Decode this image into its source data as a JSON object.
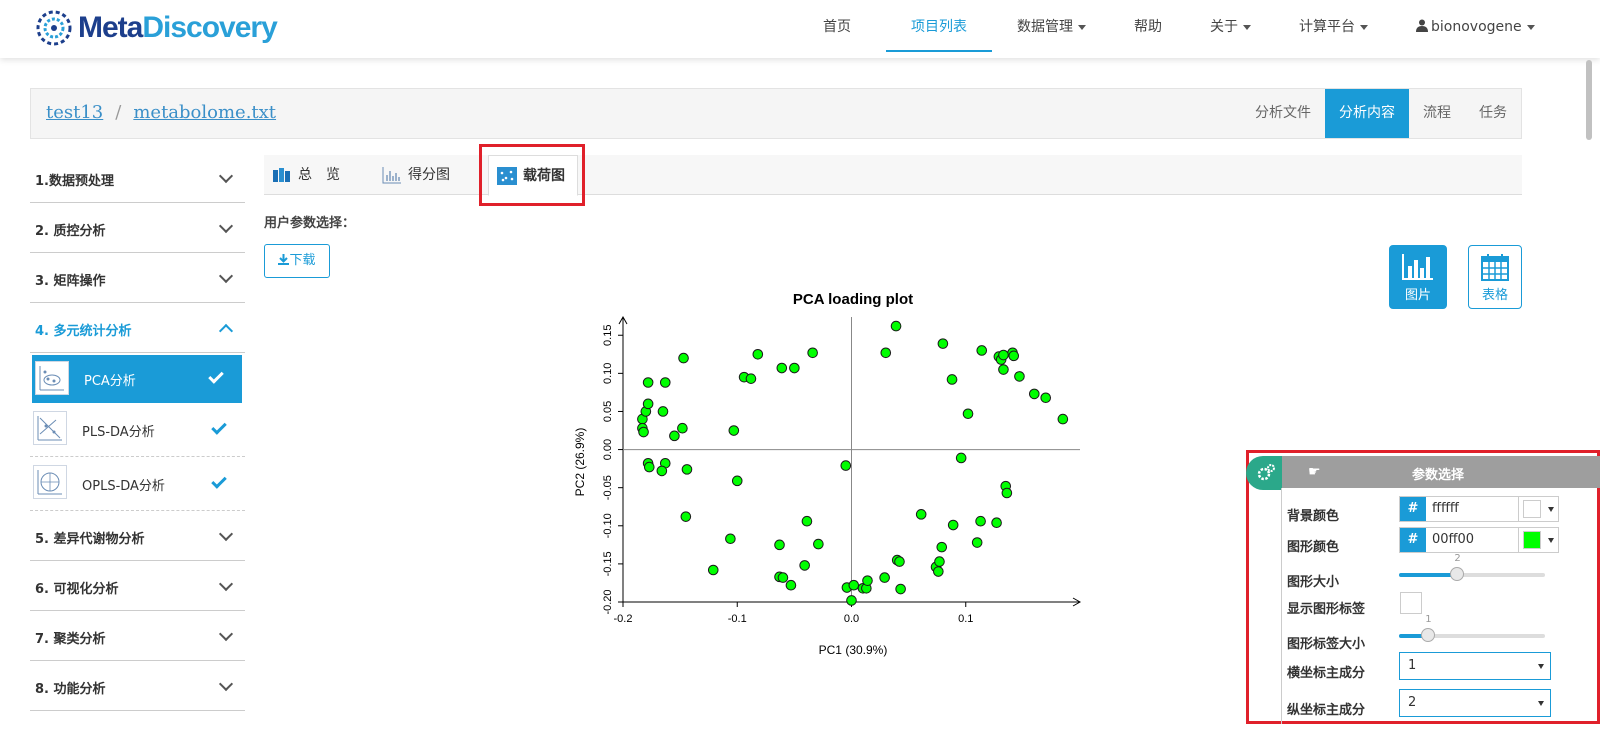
{
  "app": {
    "logo_part1": "Meta",
    "logo_part2": "Discovery"
  },
  "nav": {
    "items": [
      {
        "label": "首页"
      },
      {
        "label": "项目列表"
      },
      {
        "label": "数据管理"
      },
      {
        "label": "帮助"
      },
      {
        "label": "关于"
      },
      {
        "label": "计算平台"
      },
      {
        "label": "bionovogene"
      }
    ]
  },
  "breadcrumb": {
    "project": "test13",
    "separator": "/",
    "file": "metabolome.txt",
    "tabs": [
      {
        "label": "分析文件"
      },
      {
        "label": "分析内容"
      },
      {
        "label": "流程"
      },
      {
        "label": "任务"
      }
    ]
  },
  "sidebar": {
    "sections": [
      {
        "label": "1.数据预处理"
      },
      {
        "label": "2. 质控分析"
      },
      {
        "label": "3. 矩阵操作"
      },
      {
        "label": "4. 多元统计分析"
      },
      {
        "label": "5. 差异代谢物分析"
      },
      {
        "label": "6. 可视化分析"
      },
      {
        "label": "7. 聚类分析"
      },
      {
        "label": "8. 功能分析"
      }
    ],
    "sub_items": [
      {
        "label": "PCA分析"
      },
      {
        "label": "PLS-DA分析"
      },
      {
        "label": "OPLS-DA分析"
      }
    ]
  },
  "tabs": [
    {
      "label": "总　览"
    },
    {
      "label": "得分图"
    },
    {
      "label": "载荷图"
    }
  ],
  "user_param_label": "用户参数选择：",
  "download_label": "下载",
  "view_buttons": {
    "image": "图片",
    "table": "表格"
  },
  "colors": {
    "accent": "#1a9bd7",
    "highlight_red": "#e0202a",
    "point_fill": "#00ff00",
    "panel_header": "#9e9e9e",
    "gear_tab": "#2ba88a"
  },
  "chart_data": {
    "type": "scatter",
    "title": "PCA loading plot",
    "xlabel": "PC1 (30.9%)",
    "ylabel": "PC2 (26.9%)",
    "xlim": [
      -0.2,
      0.2
    ],
    "ylim": [
      -0.2,
      0.17
    ],
    "xticks": [
      "-0.2",
      "-0.1",
      "0.0",
      "0.1"
    ],
    "xtick_values": [
      -0.2,
      -0.1,
      0.0,
      0.1
    ],
    "yticks": [
      "-0.20",
      "-0.15",
      "-0.10",
      "-0.05",
      "0.00",
      "0.05",
      "0.10",
      "0.15"
    ],
    "ytick_values": [
      -0.2,
      -0.15,
      -0.1,
      -0.05,
      0.0,
      0.05,
      0.1,
      0.15
    ],
    "points": [
      [
        -0.183,
        0.04
      ],
      [
        -0.18,
        0.05
      ],
      [
        -0.178,
        0.06
      ],
      [
        -0.183,
        0.028
      ],
      [
        -0.182,
        0.023
      ],
      [
        -0.178,
        0.088
      ],
      [
        -0.163,
        0.088
      ],
      [
        -0.147,
        0.12
      ],
      [
        -0.165,
        0.05
      ],
      [
        -0.148,
        0.028
      ],
      [
        -0.155,
        0.018
      ],
      [
        -0.178,
        -0.018
      ],
      [
        -0.177,
        -0.023
      ],
      [
        -0.163,
        -0.018
      ],
      [
        -0.166,
        -0.028
      ],
      [
        -0.144,
        -0.026
      ],
      [
        -0.145,
        -0.088
      ],
      [
        -0.103,
        0.025
      ],
      [
        -0.1,
        -0.041
      ],
      [
        -0.094,
        0.095
      ],
      [
        -0.088,
        0.093
      ],
      [
        -0.082,
        0.125
      ],
      [
        -0.061,
        0.107
      ],
      [
        -0.05,
        0.107
      ],
      [
        -0.034,
        0.127
      ],
      [
        -0.121,
        -0.158
      ],
      [
        -0.106,
        -0.117
      ],
      [
        -0.063,
        -0.125
      ],
      [
        -0.063,
        -0.167
      ],
      [
        -0.06,
        -0.168
      ],
      [
        -0.053,
        -0.178
      ],
      [
        -0.041,
        -0.152
      ],
      [
        -0.039,
        -0.094
      ],
      [
        -0.029,
        -0.124
      ],
      [
        -0.005,
        -0.021
      ],
      [
        -0.004,
        -0.181
      ],
      [
        0.002,
        -0.178
      ],
      [
        0.0,
        -0.198
      ],
      [
        0.01,
        -0.182
      ],
      [
        0.013,
        -0.182
      ],
      [
        0.014,
        -0.172
      ],
      [
        0.029,
        -0.168
      ],
      [
        0.03,
        0.127
      ],
      [
        0.039,
        0.162
      ],
      [
        0.04,
        -0.145
      ],
      [
        0.042,
        -0.147
      ],
      [
        0.043,
        -0.183
      ],
      [
        0.061,
        -0.085
      ],
      [
        0.074,
        -0.154
      ],
      [
        0.076,
        -0.16
      ],
      [
        0.077,
        -0.147
      ],
      [
        0.079,
        -0.128
      ],
      [
        0.08,
        0.139
      ],
      [
        0.088,
        0.092
      ],
      [
        0.089,
        -0.099
      ],
      [
        0.096,
        -0.011
      ],
      [
        0.102,
        0.047
      ],
      [
        0.11,
        -0.122
      ],
      [
        0.113,
        -0.094
      ],
      [
        0.114,
        0.13
      ],
      [
        0.127,
        -0.096
      ],
      [
        0.129,
        0.122
      ],
      [
        0.131,
        0.118
      ],
      [
        0.133,
        0.105
      ],
      [
        0.135,
        -0.048
      ],
      [
        0.136,
        -0.057
      ],
      [
        0.141,
        0.127
      ],
      [
        0.142,
        0.123
      ],
      [
        0.147,
        0.096
      ],
      [
        0.16,
        0.073
      ],
      [
        0.17,
        0.068
      ],
      [
        0.185,
        0.04
      ],
      [
        0.133,
        0.124
      ]
    ]
  },
  "param_panel": {
    "title": "参数选择",
    "labels": {
      "bg_color": "背景颜色",
      "shape_color": "图形颜色",
      "shape_size": "图形大小",
      "show_labels": "显示图形标签",
      "label_size": "图形标签大小",
      "x_pc": "横坐标主成分",
      "y_pc": "纵坐标主成分"
    },
    "bg_color_value": "ffffff",
    "bg_color_swatch": "#ffffff",
    "shape_color_value": "00ff00",
    "shape_color_swatch": "#00ff00",
    "hash": "#",
    "shape_size_value": "2",
    "shape_size_fraction": 0.4,
    "label_size_value": "1",
    "label_size_fraction": 0.2,
    "show_labels_checked": false,
    "x_pc_value": "1",
    "y_pc_value": "2"
  }
}
